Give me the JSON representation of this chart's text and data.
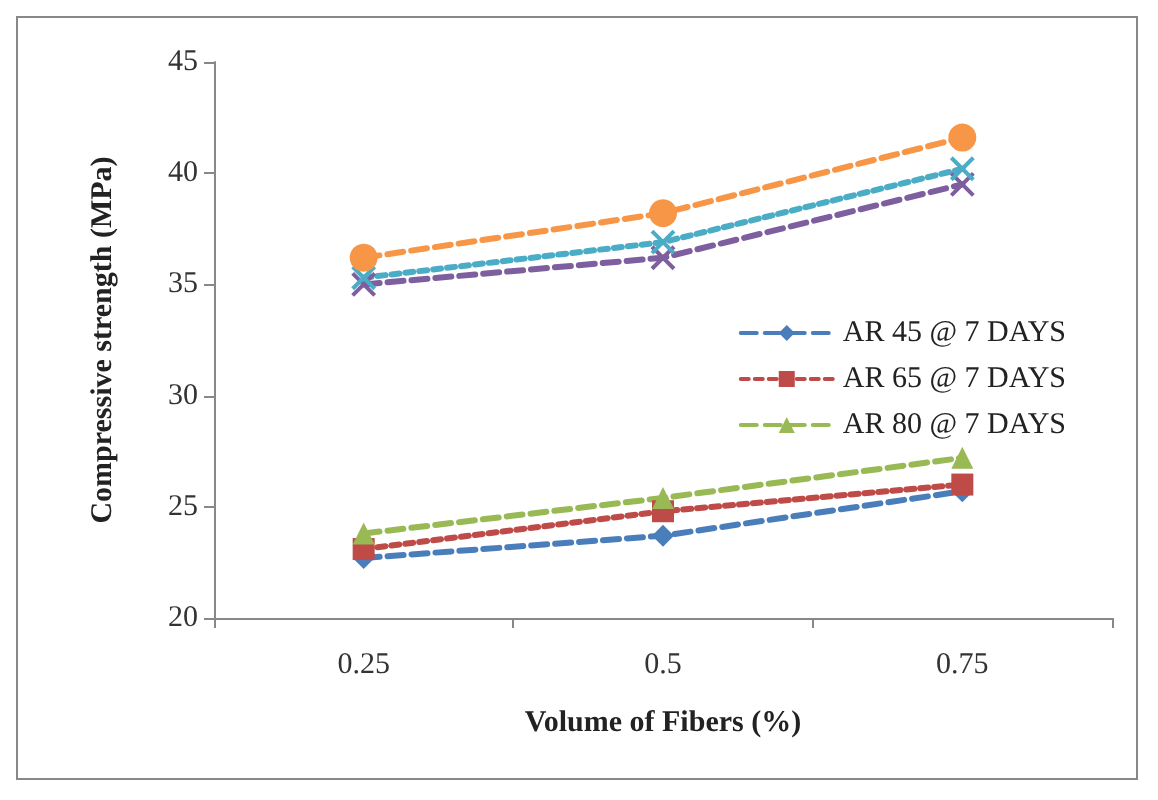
{
  "chart_data": {
    "type": "line",
    "xlabel": "Volume of Fibers (%)",
    "ylabel": "Compressive strength (MPa)",
    "categories": [
      "0.25",
      "0.5",
      "0.75"
    ],
    "ylim": [
      20,
      45
    ],
    "yticks": [
      20,
      25,
      30,
      35,
      40,
      45
    ],
    "grid": false,
    "legend": "right",
    "series": [
      {
        "name": "AR 45 @ 7 DAYS",
        "color": "#4a7ebb",
        "values": [
          22.7,
          23.7,
          25.7
        ],
        "marker": "diamond",
        "line_style": "dashed"
      },
      {
        "name": "AR 65 @ 7 DAYS",
        "color": "#be4b48",
        "values": [
          23.1,
          24.8,
          26.0
        ],
        "marker": "square",
        "line_style": "dotted"
      },
      {
        "name": "AR 80 @ 7 DAYS",
        "color": "#98b954",
        "values": [
          23.8,
          25.4,
          27.2
        ],
        "marker": "triangle",
        "line_style": "dashed"
      },
      {
        "color": "#7d5fa0",
        "values": [
          35.0,
          36.2,
          39.5
        ],
        "marker": "cross",
        "line_style": "dashed"
      },
      {
        "color": "#4bacc6",
        "values": [
          35.3,
          36.9,
          40.2
        ],
        "marker": "cross",
        "line_style": "dotted"
      },
      {
        "color": "#f79646",
        "values": [
          36.2,
          38.2,
          41.6
        ],
        "marker": "circle",
        "line_style": "dashed"
      }
    ]
  }
}
